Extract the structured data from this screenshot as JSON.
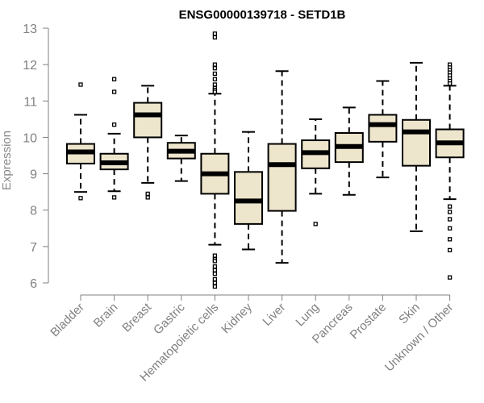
{
  "chart_data": {
    "type": "boxplot",
    "title": "ENSG00000139718 - SETD1B",
    "xlabel": "",
    "ylabel": "Expression",
    "ylim": [
      5.7,
      13.1
    ],
    "yticks": [
      6,
      7,
      8,
      9,
      10,
      11,
      12,
      13
    ],
    "grid": false,
    "colors": {
      "box_fill": "#ede5cc",
      "stroke": "#000000",
      "axis": "#808080",
      "text": "#808080"
    },
    "categories": [
      "Bladder",
      "Brain",
      "Breast",
      "Gastric",
      "Hematopoietic cells",
      "Kidney",
      "Liver",
      "Lung",
      "Pancreas",
      "Prostate",
      "Skin",
      "Unknown / Other"
    ],
    "boxes": [
      {
        "name": "Bladder",
        "whisker_low": 8.5,
        "q1": 9.28,
        "median": 9.6,
        "q3": 9.82,
        "whisker_high": 10.62,
        "outliers": [
          11.45,
          8.33
        ]
      },
      {
        "name": "Brain",
        "whisker_low": 8.52,
        "q1": 9.12,
        "median": 9.3,
        "q3": 9.55,
        "whisker_high": 10.1,
        "outliers": [
          11.6,
          11.25,
          10.35,
          8.35
        ]
      },
      {
        "name": "Breast",
        "whisker_low": 8.75,
        "q1": 10.0,
        "median": 10.62,
        "q3": 10.95,
        "whisker_high": 11.42,
        "outliers": [
          8.45,
          8.35
        ]
      },
      {
        "name": "Gastric",
        "whisker_low": 8.8,
        "q1": 9.42,
        "median": 9.62,
        "q3": 9.85,
        "whisker_high": 10.05,
        "outliers": []
      },
      {
        "name": "Hematopoietic cells",
        "whisker_low": 7.05,
        "q1": 8.45,
        "median": 9.0,
        "q3": 9.55,
        "whisker_high": 11.2,
        "outliers": [
          12.85,
          12.75,
          12.0,
          11.9,
          11.75,
          11.6,
          11.45,
          11.35,
          11.3,
          11.25,
          6.75,
          6.65,
          6.6,
          6.45,
          6.35,
          6.25,
          6.1,
          6.0,
          5.9
        ]
      },
      {
        "name": "Kidney",
        "whisker_low": 6.92,
        "q1": 7.62,
        "median": 8.25,
        "q3": 9.05,
        "whisker_high": 10.15,
        "outliers": []
      },
      {
        "name": "Liver",
        "whisker_low": 6.55,
        "q1": 7.98,
        "median": 9.25,
        "q3": 9.82,
        "whisker_high": 11.82,
        "outliers": []
      },
      {
        "name": "Lung",
        "whisker_low": 8.45,
        "q1": 9.15,
        "median": 9.58,
        "q3": 9.92,
        "whisker_high": 10.5,
        "outliers": [
          7.62
        ]
      },
      {
        "name": "Pancreas",
        "whisker_low": 8.42,
        "q1": 9.32,
        "median": 9.75,
        "q3": 10.12,
        "whisker_high": 10.82,
        "outliers": []
      },
      {
        "name": "Prostate",
        "whisker_low": 8.9,
        "q1": 9.88,
        "median": 10.35,
        "q3": 10.62,
        "whisker_high": 11.55,
        "outliers": []
      },
      {
        "name": "Skin",
        "whisker_low": 7.42,
        "q1": 9.22,
        "median": 10.15,
        "q3": 10.48,
        "whisker_high": 12.05,
        "outliers": []
      },
      {
        "name": "Unknown / Other",
        "whisker_low": 8.3,
        "q1": 9.45,
        "median": 9.85,
        "q3": 10.22,
        "whisker_high": 11.42,
        "outliers": [
          12.0,
          11.92,
          11.85,
          11.78,
          11.7,
          11.62,
          11.55,
          11.48,
          8.1,
          7.95,
          7.75,
          7.5,
          7.2,
          6.9,
          6.15
        ]
      }
    ]
  }
}
